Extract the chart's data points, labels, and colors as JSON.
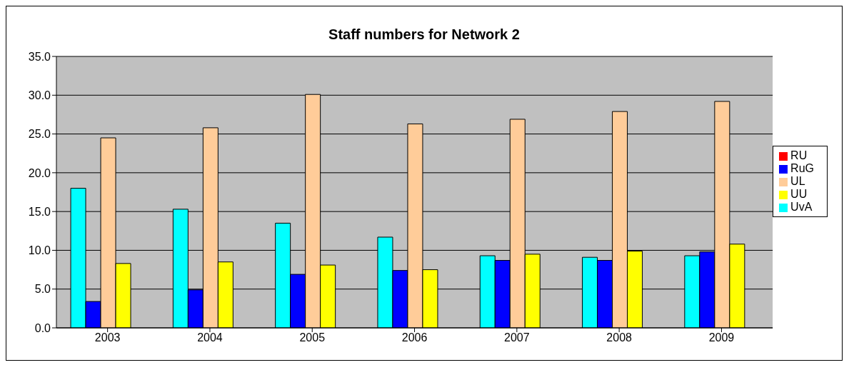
{
  "chart_data": {
    "type": "bar",
    "title": "Staff numbers for Network 2",
    "categories": [
      "2003",
      "2004",
      "2005",
      "2006",
      "2007",
      "2008",
      "2009"
    ],
    "series": [
      {
        "name": "UvA",
        "color": "#00ffff",
        "values": [
          18.0,
          15.3,
          13.5,
          11.7,
          9.3,
          9.1,
          9.3
        ]
      },
      {
        "name": "RuG",
        "color": "#0000ff",
        "values": [
          3.4,
          4.9,
          6.9,
          7.4,
          8.7,
          8.7,
          9.8
        ]
      },
      {
        "name": "UL",
        "color": "#ffcc99",
        "values": [
          24.5,
          25.8,
          30.1,
          26.3,
          26.9,
          27.9,
          29.2
        ]
      },
      {
        "name": "UU",
        "color": "#ffff00",
        "values": [
          8.3,
          8.5,
          8.1,
          7.5,
          9.5,
          9.9,
          10.8
        ]
      },
      {
        "name": "RU",
        "color": "#ff0000",
        "values": [
          null,
          null,
          null,
          null,
          null,
          null,
          null
        ]
      }
    ],
    "ylim": [
      0,
      35
    ],
    "yticks": [
      {
        "value": 0,
        "label": "0.0"
      },
      {
        "value": 5,
        "label": "5.0"
      },
      {
        "value": 10,
        "label": "10.0"
      },
      {
        "value": 15,
        "label": "15.0"
      },
      {
        "value": 20,
        "label": "20.0"
      },
      {
        "value": 25,
        "label": "25.0"
      },
      {
        "value": 30,
        "label": "30.0"
      },
      {
        "value": 35,
        "label": "35.0"
      }
    ],
    "grid": "y",
    "legend": "right"
  }
}
